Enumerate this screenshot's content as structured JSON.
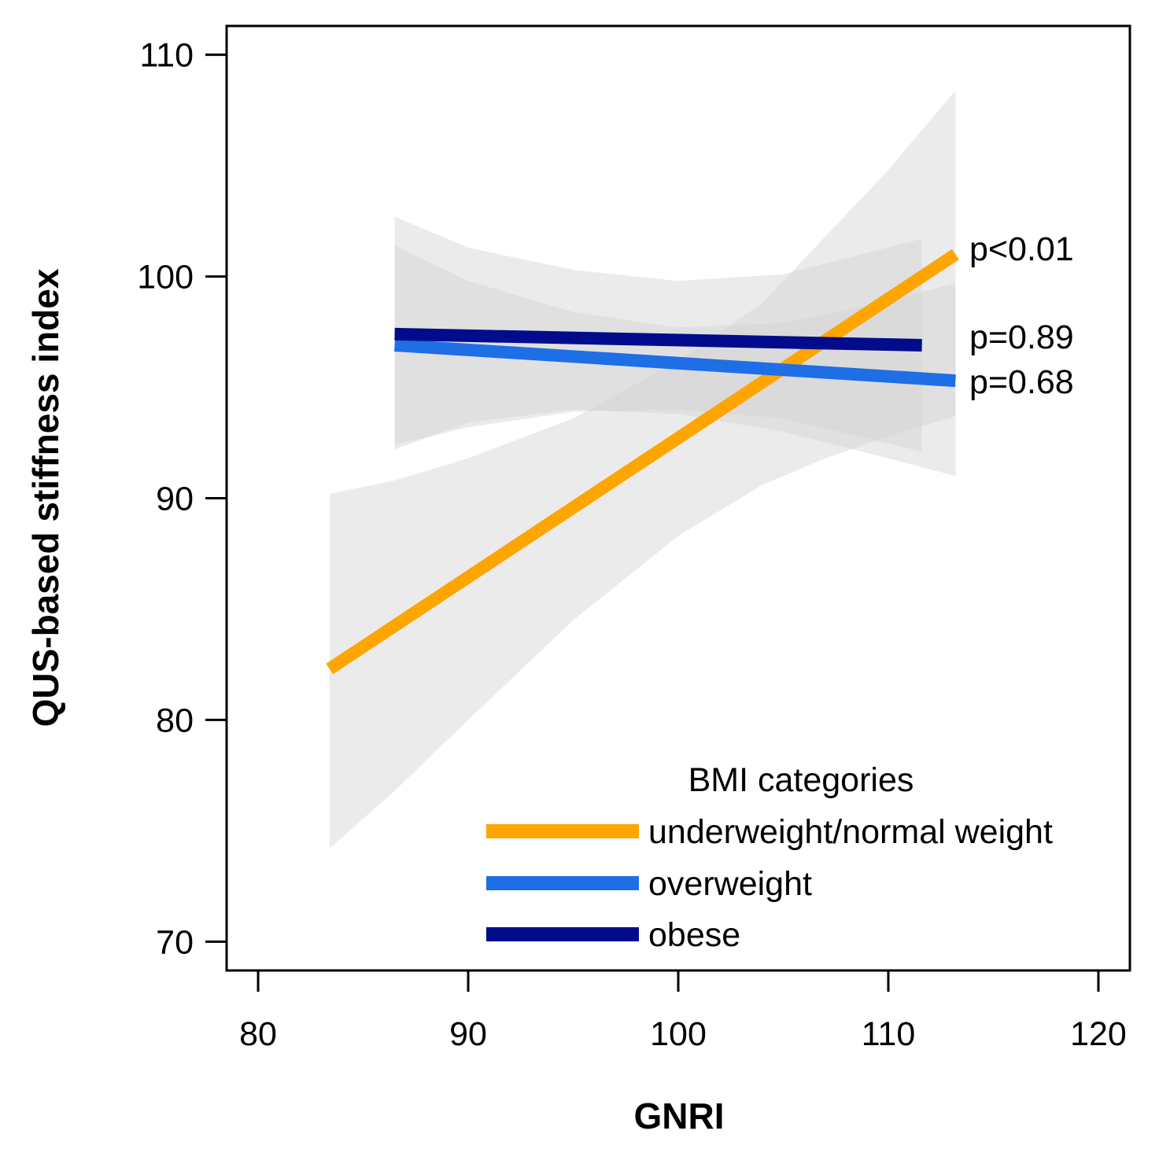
{
  "chart_data": {
    "type": "line",
    "title": "",
    "xlabel": "GNRI",
    "ylabel": "QUS-based stiffness index",
    "xlim": [
      78.5,
      121.5
    ],
    "ylim": [
      68.7,
      111.3
    ],
    "xticks": [
      80,
      90,
      100,
      110,
      120
    ],
    "yticks": [
      70,
      80,
      90,
      100,
      110
    ],
    "grid": false,
    "legend": {
      "title": "BMI categories",
      "placement": "bottom-right"
    },
    "series": [
      {
        "name": "underweight/normal weight",
        "color": "#FFA500",
        "x": [
          83.4,
          113.2
        ],
        "y": [
          82.3,
          101.0
        ],
        "ci_x": [
          83.4,
          86.5,
          90,
          95,
          100,
          104,
          107,
          110,
          113.2
        ],
        "ci_lower": [
          74.2,
          76.8,
          80.0,
          84.5,
          88.3,
          90.6,
          91.8,
          92.8,
          93.7
        ],
        "ci_upper": [
          90.2,
          90.8,
          91.8,
          93.6,
          96.2,
          98.8,
          101.8,
          104.8,
          108.4
        ],
        "annotation": "p<0.01"
      },
      {
        "name": "overweight",
        "color": "#1E6EE6",
        "x": [
          86.5,
          113.2
        ],
        "y": [
          96.9,
          95.3
        ],
        "ci_x": [
          86.5,
          90,
          95,
          100,
          105,
          110,
          113.2
        ],
        "ci_lower": [
          92.2,
          93.4,
          94.0,
          93.8,
          93.0,
          91.8,
          91.0
        ],
        "ci_upper": [
          101.4,
          99.8,
          98.4,
          97.7,
          97.9,
          98.9,
          99.7
        ],
        "annotation": "p=0.68"
      },
      {
        "name": "obese",
        "color": "#000C8C",
        "x": [
          86.5,
          111.6
        ],
        "y": [
          97.4,
          96.9
        ],
        "ci_x": [
          86.5,
          90,
          95,
          100,
          105,
          111.6
        ],
        "ci_lower": [
          92.4,
          93.2,
          93.9,
          94.0,
          93.6,
          92.1
        ],
        "ci_upper": [
          102.7,
          101.3,
          100.3,
          99.8,
          100.1,
          101.7
        ],
        "annotation": "p=0.89"
      }
    ]
  }
}
